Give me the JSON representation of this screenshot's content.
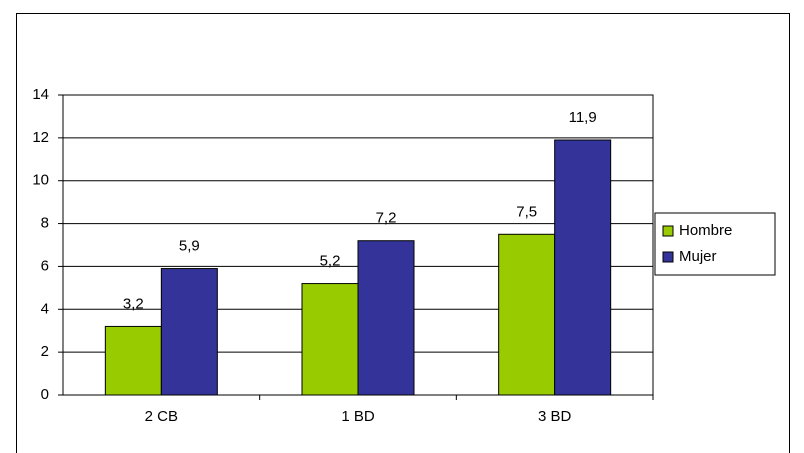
{
  "chart_data": {
    "type": "bar",
    "categories": [
      "2 CB",
      "1 BD",
      "3 BD"
    ],
    "series": [
      {
        "name": "Hombre",
        "color": "#99cc00",
        "values": [
          3.2,
          5.2,
          7.5
        ],
        "value_labels": [
          "3,2",
          "5,2",
          "7,5"
        ]
      },
      {
        "name": "Mujer",
        "color": "#333399",
        "values": [
          5.9,
          7.2,
          11.9
        ],
        "value_labels": [
          "5,9",
          "7,2",
          "11,9"
        ]
      }
    ],
    "ylim": [
      0,
      14
    ],
    "yticks": [
      0,
      2,
      4,
      6,
      8,
      10,
      12,
      14
    ],
    "grid": true,
    "legend": "right"
  }
}
